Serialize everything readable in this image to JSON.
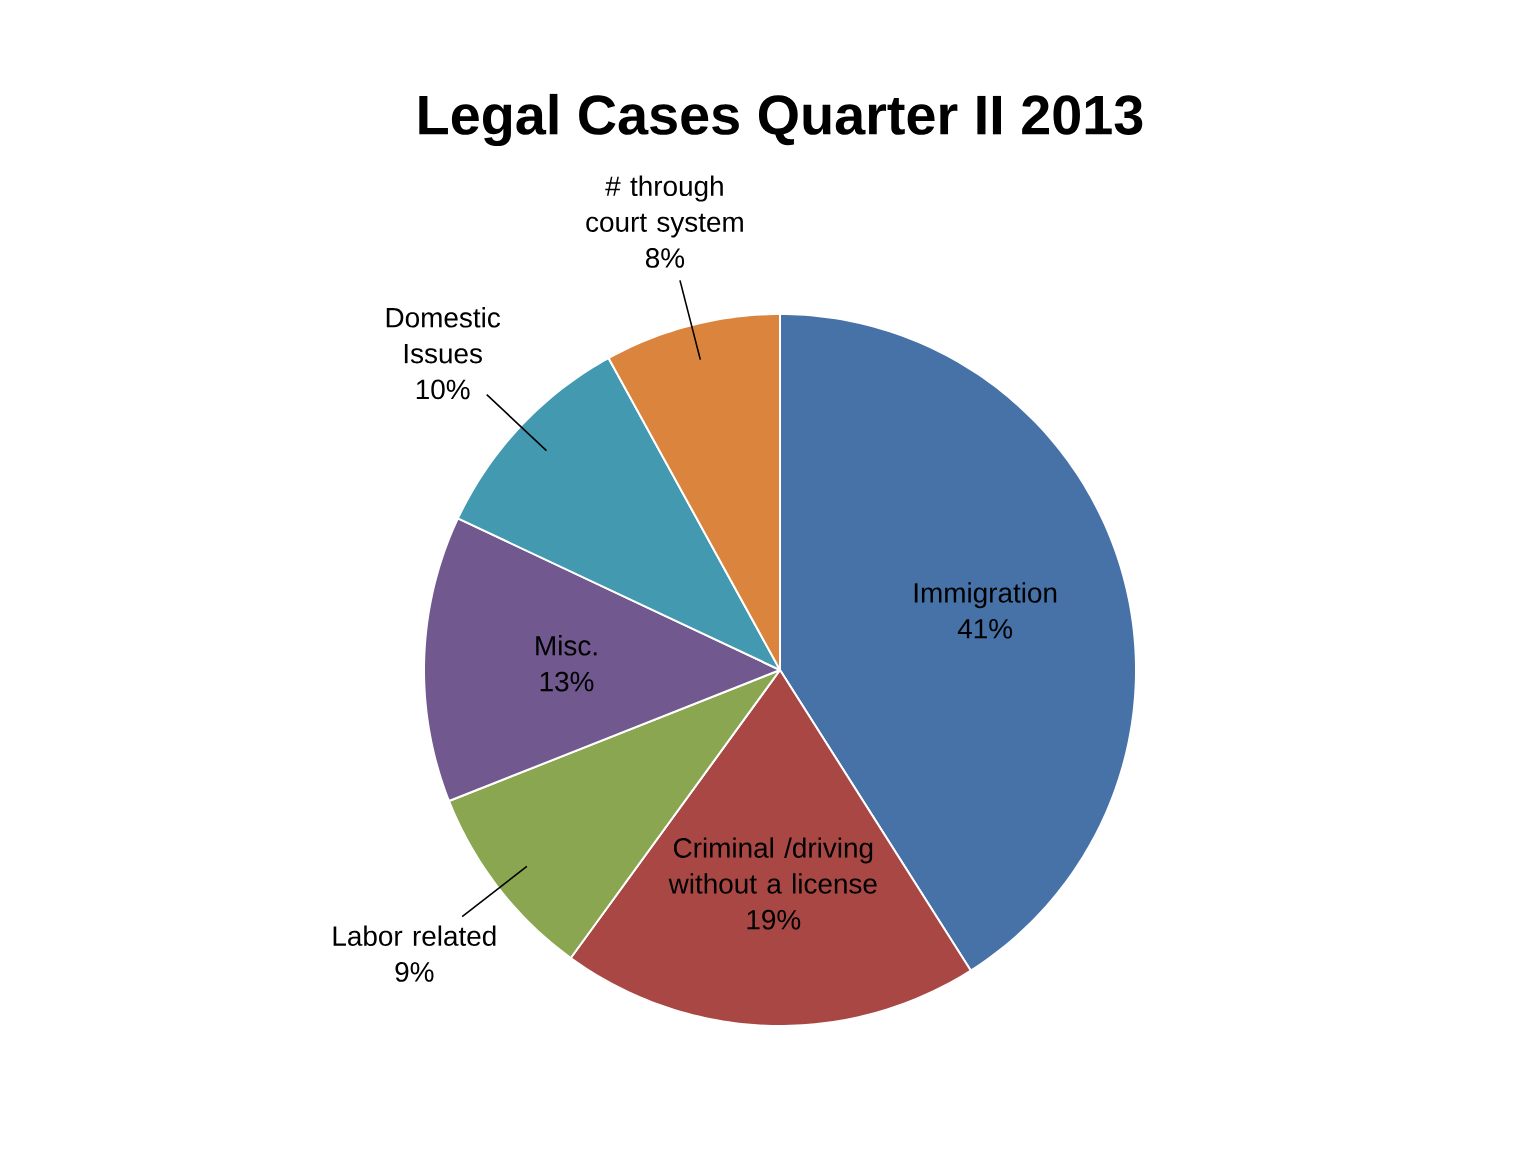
{
  "chart_data": {
    "type": "pie",
    "title": "Legal Cases Quarter II 2013",
    "categories": [
      "Immigration",
      "Criminal /driving without a license",
      "Labor related",
      "Misc.",
      "Domestic Issues",
      "# through court system"
    ],
    "values": [
      41,
      19,
      9,
      13,
      10,
      8
    ],
    "value_labels": [
      "41%",
      "19%",
      "9%",
      "13%",
      "10%",
      "8%"
    ],
    "colors": [
      "#4672a8",
      "#a94744",
      "#8aa650",
      "#71588f",
      "#4299b0",
      "#da843e"
    ]
  }
}
